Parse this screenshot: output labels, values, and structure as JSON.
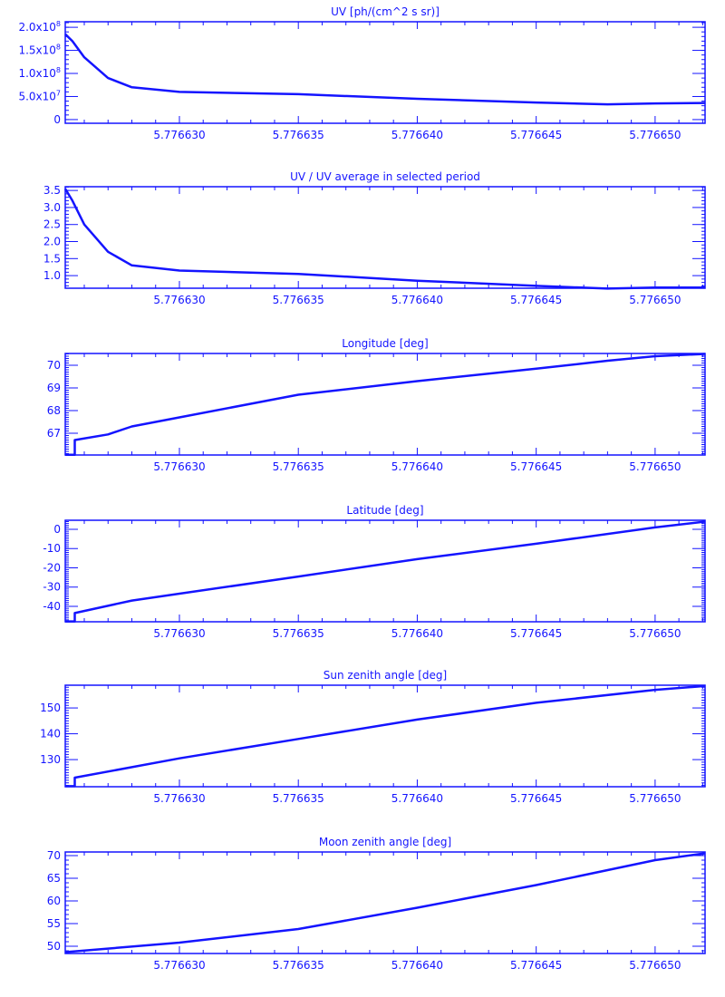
{
  "color": "#1414ff",
  "chart_data": [
    {
      "type": "line",
      "title": "UV [ph/(cm^2 s sr)]",
      "xlim": [
        5.7766252,
        5.7766521
      ],
      "ylim": [
        -8000000.0,
        212000000.0
      ],
      "xticks": [
        5.77663,
        5.776635,
        5.77664,
        5.776645,
        5.77665
      ],
      "xtick_labels": [
        "5.776630",
        "5.776635",
        "5.776640",
        "5.776645",
        "5.776650"
      ],
      "yticks": [
        0,
        50000000.0,
        100000000.0,
        150000000.0,
        200000000.0
      ],
      "ytick_labels": [
        {
          "mant": "0",
          "exp": ""
        },
        {
          "mant": "5.0x10",
          "exp": "7"
        },
        {
          "mant": "1.0x10",
          "exp": "8"
        },
        {
          "mant": "1.5x10",
          "exp": "8"
        },
        {
          "mant": "2.0x10",
          "exp": "8"
        }
      ],
      "yminor": 10000000.0,
      "x": [
        5.7766252,
        5.7766255,
        5.776626,
        5.776627,
        5.776628,
        5.77663,
        5.776635,
        5.77664,
        5.776645,
        5.776648,
        5.77665,
        5.7766521
      ],
      "y": [
        185000000.0,
        170000000.0,
        135000000.0,
        90000000.0,
        70000000.0,
        60000000.0,
        55000000.0,
        45000000.0,
        37000000.0,
        33000000.0,
        35000000.0,
        36000000.0
      ]
    },
    {
      "type": "line",
      "title": "UV / UV average in selected period",
      "xlim": [
        5.7766252,
        5.7766521
      ],
      "ylim": [
        0.63,
        3.61
      ],
      "xticks": [
        5.77663,
        5.776635,
        5.77664,
        5.776645,
        5.77665
      ],
      "xtick_labels": [
        "5.776630",
        "5.776635",
        "5.776640",
        "5.776645",
        "5.776650"
      ],
      "yticks": [
        1.0,
        1.5,
        2.0,
        2.5,
        3.0,
        3.5
      ],
      "ytick_labels": [
        {
          "mant": "1.0",
          "exp": ""
        },
        {
          "mant": "1.5",
          "exp": ""
        },
        {
          "mant": "2.0",
          "exp": ""
        },
        {
          "mant": "2.5",
          "exp": ""
        },
        {
          "mant": "3.0",
          "exp": ""
        },
        {
          "mant": "3.5",
          "exp": ""
        }
      ],
      "yminor": 0.1,
      "x": [
        5.7766252,
        5.7766255,
        5.776626,
        5.776627,
        5.776628,
        5.77663,
        5.776635,
        5.77664,
        5.776645,
        5.776648,
        5.77665,
        5.7766521
      ],
      "y": [
        3.55,
        3.2,
        2.5,
        1.7,
        1.3,
        1.15,
        1.05,
        0.85,
        0.7,
        0.62,
        0.65,
        0.65
      ]
    },
    {
      "type": "line",
      "title": "Longitude [deg]",
      "xlim": [
        5.7766252,
        5.7766521
      ],
      "ylim": [
        66.04,
        70.52
      ],
      "xticks": [
        5.77663,
        5.776635,
        5.77664,
        5.776645,
        5.77665
      ],
      "xtick_labels": [
        "5.776630",
        "5.776635",
        "5.776640",
        "5.776645",
        "5.776650"
      ],
      "yticks": [
        67,
        68,
        69,
        70
      ],
      "ytick_labels": [
        {
          "mant": "67",
          "exp": ""
        },
        {
          "mant": "68",
          "exp": ""
        },
        {
          "mant": "69",
          "exp": ""
        },
        {
          "mant": "70",
          "exp": ""
        }
      ],
      "yminor": 0.1,
      "x": [
        5.7766252,
        5.7766256,
        5.7766256,
        5.776627,
        5.776628,
        5.77663,
        5.776635,
        5.77664,
        5.776645,
        5.776648,
        5.77665,
        5.7766521
      ],
      "y": [
        66.05,
        66.05,
        66.7,
        66.95,
        67.3,
        67.7,
        68.7,
        69.3,
        69.85,
        70.2,
        70.4,
        70.5
      ]
    },
    {
      "type": "line",
      "title": "Latitude [deg]",
      "xlim": [
        5.7766252,
        5.7766521
      ],
      "ylim": [
        -48,
        4.7
      ],
      "xticks": [
        5.77663,
        5.776635,
        5.77664,
        5.776645,
        5.77665
      ],
      "xtick_labels": [
        "5.776630",
        "5.776635",
        "5.776640",
        "5.776645",
        "5.776650"
      ],
      "yticks": [
        -40,
        -30,
        -20,
        -10,
        0
      ],
      "ytick_labels": [
        {
          "mant": "-40",
          "exp": ""
        },
        {
          "mant": "-30",
          "exp": ""
        },
        {
          "mant": "-20",
          "exp": ""
        },
        {
          "mant": "-10",
          "exp": ""
        },
        {
          "mant": "0",
          "exp": ""
        }
      ],
      "yminor": 1,
      "x": [
        5.7766252,
        5.7766256,
        5.7766256,
        5.776628,
        5.77663,
        5.776635,
        5.77664,
        5.776645,
        5.77665,
        5.7766521
      ],
      "y": [
        -47.8,
        -47.8,
        -43.5,
        -37,
        -33.4,
        -24.5,
        -15.5,
        -7.5,
        1,
        4
      ]
    },
    {
      "type": "line",
      "title": "Sun zenith angle [deg]",
      "xlim": [
        5.7766252,
        5.7766521
      ],
      "ylim": [
        119.5,
        158.8
      ],
      "xticks": [
        5.77663,
        5.776635,
        5.77664,
        5.776645,
        5.77665
      ],
      "xtick_labels": [
        "5.776630",
        "5.776635",
        "5.776640",
        "5.776645",
        "5.776650"
      ],
      "yticks": [
        130,
        140,
        150
      ],
      "ytick_labels": [
        {
          "mant": "130",
          "exp": ""
        },
        {
          "mant": "140",
          "exp": ""
        },
        {
          "mant": "150",
          "exp": ""
        }
      ],
      "yminor": 1,
      "x": [
        5.7766252,
        5.7766256,
        5.7766256,
        5.77663,
        5.776635,
        5.77664,
        5.776645,
        5.77665,
        5.7766521
      ],
      "y": [
        119.7,
        119.7,
        123,
        130.5,
        138,
        145.5,
        152,
        157,
        158.5
      ]
    },
    {
      "type": "line",
      "title": "Moon zenith angle [deg]",
      "xlim": [
        5.7766252,
        5.7766521
      ],
      "ylim": [
        48.4,
        70.8
      ],
      "xticks": [
        5.77663,
        5.776635,
        5.77664,
        5.776645,
        5.77665
      ],
      "xtick_labels": [
        "5.776630",
        "5.776635",
        "5.776640",
        "5.776645",
        "5.776650"
      ],
      "yticks": [
        50,
        55,
        60,
        65,
        70
      ],
      "ytick_labels": [
        {
          "mant": "50",
          "exp": ""
        },
        {
          "mant": "55",
          "exp": ""
        },
        {
          "mant": "60",
          "exp": ""
        },
        {
          "mant": "65",
          "exp": ""
        },
        {
          "mant": "70",
          "exp": ""
        }
      ],
      "yminor": 1,
      "x": [
        5.7766252,
        5.77663,
        5.776635,
        5.77664,
        5.776645,
        5.77665,
        5.7766521
      ],
      "y": [
        48.7,
        50.8,
        53.8,
        58.5,
        63.5,
        69,
        70.5
      ]
    }
  ]
}
